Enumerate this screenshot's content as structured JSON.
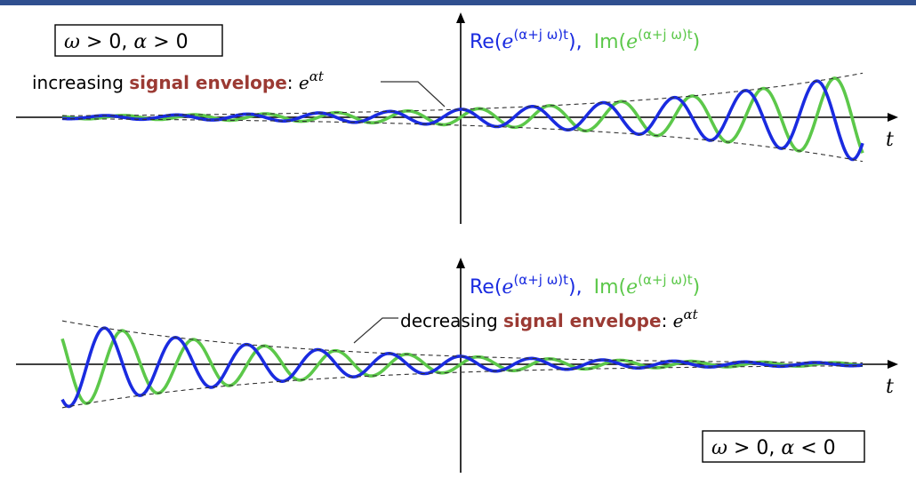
{
  "colors": {
    "re_curve": "#1a2be0",
    "im_curve": "#5cc84a",
    "envelope": "#333333",
    "emphasis": "#9b3a33",
    "axis": "#000000",
    "header_bar": "#2f4f8f"
  },
  "axis_label": "t",
  "top_panel": {
    "condition": {
      "omega": "ω",
      "gt": " > 0, ",
      "alpha": "α",
      "rel": " > 0"
    },
    "curves_label": {
      "re": "Re(",
      "im": "Im(",
      "base": "e",
      "exponent": "(α+j ω)t",
      "close_re": "),",
      "close_im": ")"
    },
    "annotation": {
      "prefix": "increasing ",
      "emph": "signal envelope",
      "colon": ": ",
      "base": "e",
      "exponent": "αt"
    }
  },
  "bottom_panel": {
    "condition": {
      "omega": "ω",
      "gt": " > 0, ",
      "alpha": "α",
      "rel": " < 0"
    },
    "curves_label": {
      "re": "Re(",
      "im": "Im(",
      "base": "e",
      "exponent": "(α+j ω)t",
      "close_re": "),",
      "close_im": ")"
    },
    "annotation": {
      "prefix": "decreasing ",
      "emph": "signal envelope",
      "colon": ": ",
      "base": "e",
      "exponent": "αt"
    }
  }
}
